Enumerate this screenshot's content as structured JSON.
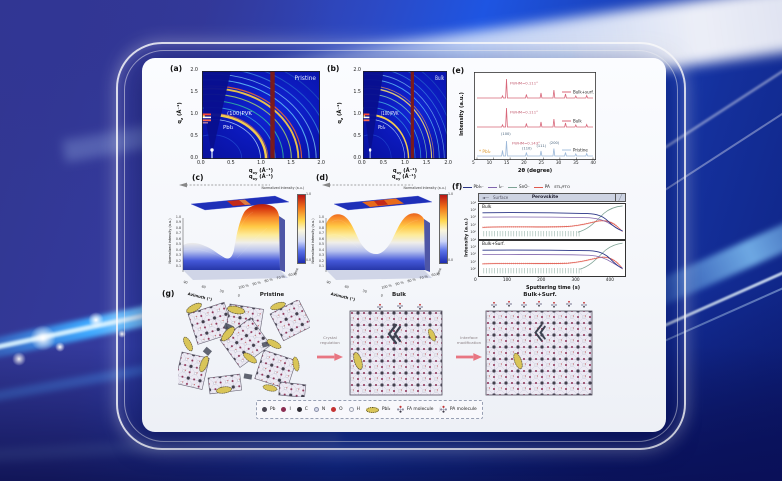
{
  "colors": {
    "giwaxs_background": "#0a16ae",
    "beamstop_stripe": "#7e1a16",
    "xrd_trace_red": "#d8677a",
    "xrd_trace_blue": "#9db9d9",
    "pbi2_marker_orange": "#e09a2e",
    "sims_pbi3": "#2a3586",
    "sims_i2": "#8166ad",
    "sims_sno": "#7da294",
    "sims_pa": "#e05a4e",
    "arrow_pink": "#e87682",
    "pbi2_yellow": "#d9c558"
  },
  "panels": {
    "a": {
      "label": "(a)",
      "sample": "Pristine",
      "annotation_pvk": "(100)PVK",
      "annotation_pbi2": "PbI₂",
      "x_axis": {
        "base": "q",
        "sub": "xy",
        "unit": " (Å⁻¹)",
        "ticks": [
          "0.0",
          "0.5",
          "1.0",
          "1.5",
          "2.0"
        ]
      },
      "y_axis": {
        "base": "q",
        "sub": "z",
        "unit": " (Å⁻¹)",
        "ticks": [
          "2.0",
          "1.5",
          "1.0",
          "0.5",
          "0.0"
        ]
      }
    },
    "b": {
      "label": "(b)",
      "sample": "Bulk",
      "annotation_pvk": "(100)PVK",
      "annotation_pbi2": "PbI₂",
      "x_axis": {
        "base": "q",
        "sub": "xy",
        "unit": " (Å⁻¹)",
        "ticks": [
          "0.0",
          "0.5",
          "1.0",
          "1.5",
          "2.0"
        ]
      },
      "y_axis": {
        "base": "q",
        "sub": "z",
        "unit": " (Å⁻¹)",
        "ticks": [
          "2.0",
          "1.5",
          "1.0",
          "0.5",
          "0.0"
        ]
      }
    },
    "c": {
      "label": "(c)",
      "top_axis": {
        "base": "q",
        "sub": "xy",
        "unit": " (Å⁻¹)"
      },
      "z_axis_label": "Normalized intensity (a.u.)",
      "z_ticks": [
        "1.0",
        "0.9",
        "0.8",
        "0.7",
        "0.6",
        "0.5",
        "0.4",
        "0.3",
        "0.2",
        "0.1"
      ],
      "azimuth_label": "Azimuth (°)",
      "azimuth_ticks": [
        "90",
        "60",
        "30",
        "0"
      ],
      "time_label": "Time",
      "time_ticks": [
        "100 %",
        "90 %",
        "80 %",
        "70 %",
        "60 %"
      ],
      "colorbar": {
        "label": "Normalized Intensity (a.u.)",
        "max": "1.0",
        "min": "0.0"
      }
    },
    "d": {
      "label": "(d)",
      "top_axis": {
        "base": "q",
        "sub": "xy",
        "unit": " (Å⁻¹)"
      },
      "z_axis_label": "Normalized intensity (a.u.)",
      "z_ticks": [
        "1.0",
        "0.9",
        "0.8",
        "0.7",
        "0.6",
        "0.5",
        "0.4",
        "0.3",
        "0.2",
        "0.1"
      ],
      "azimuth_label": "Azimuth (°)",
      "azimuth_ticks": [
        "90",
        "60",
        "30",
        "0"
      ],
      "time_label": "Time",
      "time_ticks": [
        "100 %",
        "90 %",
        "80 %",
        "70 %",
        "60 %"
      ],
      "colorbar": {
        "label": "Normalized Intensity (a.u.)",
        "max": "1.0",
        "min": "0.0"
      }
    },
    "e": {
      "label": "(e)",
      "y_label": "Intensity (a.u.)",
      "x_label": "2θ (degree)",
      "x_ticks": [
        "5",
        "10",
        "15",
        "20",
        "25",
        "30",
        "35",
        "40"
      ],
      "traces": [
        {
          "name": "Bulk+surf.",
          "fwhm": "FWHM=0.111°"
        },
        {
          "name": "Bulk",
          "fwhm": "FWHM=0.111°"
        },
        {
          "name": "Pristine",
          "fwhm": "FWHM=0.143°"
        }
      ],
      "peak_labels": [
        "(100)",
        "(110)",
        "(111)",
        "(200)"
      ],
      "pbi2_marker": "* PbI₂",
      "peak_positions_2theta": [
        12.7,
        13.9,
        19.9,
        24.3,
        28.2,
        31.7,
        34.8,
        38.1
      ]
    },
    "f": {
      "label": "(f)",
      "legend": [
        {
          "name": "PbI₃⁻"
        },
        {
          "name": "I₂⁻"
        },
        {
          "name": "SnO⁻"
        },
        {
          "name": "PA"
        }
      ],
      "stack_label": "ETL/FTO",
      "surface_arrow": "◄—",
      "surface_label": "Surface",
      "perovskite_label": "Perovskite",
      "subpanels": [
        {
          "name": "Bulk"
        },
        {
          "name": "Bulk+Surf."
        }
      ],
      "y_label": "Intensity (a.u.)",
      "y_ticks": [
        "10⁴",
        "10³",
        "10²",
        "10¹",
        "10⁰"
      ],
      "x_label": "Sputtering time (s)",
      "x_ticks": [
        "0",
        "100",
        "200",
        "300",
        "400"
      ]
    },
    "g": {
      "label": "(g)",
      "titles": [
        {
          "name": "Pristine"
        },
        {
          "name": "Bulk"
        },
        {
          "name": "Bulk+Surf."
        }
      ],
      "arrow1": {
        "line1": "Crystal",
        "line2": "regulation"
      },
      "arrow2": {
        "line1": "Interface",
        "line2": "modification"
      },
      "legend_atoms": [
        {
          "name": "Pb"
        },
        {
          "name": "I"
        },
        {
          "name": "C"
        },
        {
          "name": "N"
        },
        {
          "name": "O"
        },
        {
          "name": "H"
        }
      ],
      "legend_pbi2": "PbI₂",
      "legend_fa": "FA molecule",
      "legend_pa": "PA molecule"
    }
  }
}
